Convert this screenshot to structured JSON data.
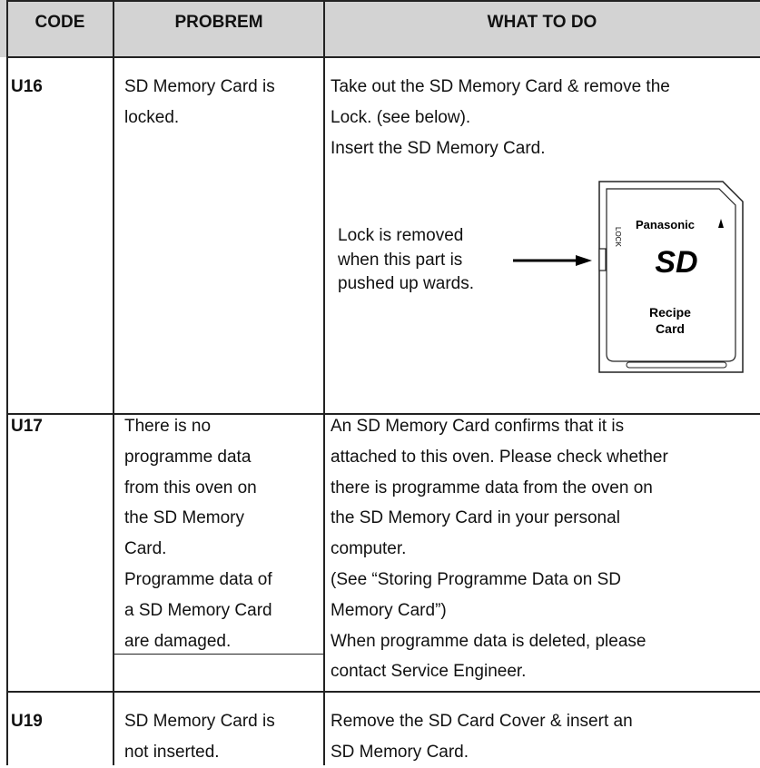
{
  "table": {
    "header": [
      "CODE",
      "PROBREM",
      "WHAT TO DO"
    ],
    "rows": [
      {
        "code": "U16",
        "problem": [
          [
            "SD Memory Card is",
            "locked."
          ]
        ],
        "action": [
          "Take out the SD Memory Card & remove the",
          "Lock. (see below).",
          "Insert the SD Memory Card."
        ],
        "figure": {
          "note": [
            "Lock is removed",
            "when this part is",
            "pushed up wards."
          ],
          "card": {
            "brand": "Panasonic",
            "logo": "SD",
            "lock": "LOCK",
            "label": [
              "Recipe",
              "Card"
            ]
          }
        }
      },
      {
        "code": "U17",
        "problem": [
          [
            "There is no",
            "programme data",
            "from this oven on",
            "the SD Memory",
            "Card."
          ],
          [
            "Programme data of",
            "a SD Memory Card",
            "are damaged."
          ]
        ],
        "action": [
          "An SD Memory Card confirms that it is",
          "attached to this oven. Please check whether",
          "there is programme data from the oven on",
          "the SD Memory Card in your personal",
          "computer.",
          "(See “Storing Programme Data on SD",
          "Memory Card”)",
          "When programme data is deleted, please",
          "contact Service Engineer."
        ]
      },
      {
        "code": "U19",
        "problem": [
          [
            "SD Memory Card is",
            "not inserted."
          ]
        ],
        "action": [
          "Remove the SD Card Cover & insert an",
          "SD Memory Card."
        ]
      }
    ]
  }
}
